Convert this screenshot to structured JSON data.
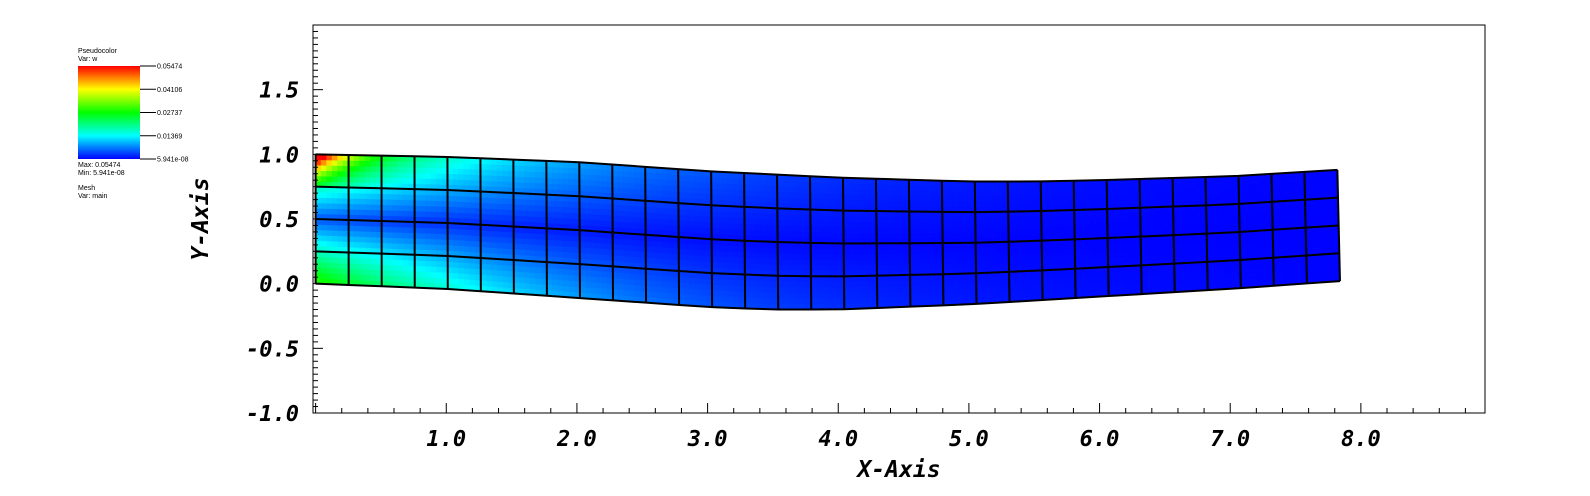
{
  "chart_data": {
    "type": "heatmap",
    "plot_kind": "pseudocolor on deformed quadrilateral mesh",
    "xlabel": "X-Axis",
    "ylabel": "Y-Axis",
    "xlim": [
      -0.02,
      8.95
    ],
    "ylim": [
      -1.0,
      2.0
    ],
    "x_ticks": [
      "1.0",
      "2.0",
      "3.0",
      "4.0",
      "5.0",
      "6.0",
      "7.0",
      "8.0"
    ],
    "y_ticks": [
      "-1.0",
      "-0.5",
      "0.0",
      "0.5",
      "1.0",
      "1.5"
    ],
    "x_tick_values": [
      1,
      2,
      3,
      4,
      5,
      6,
      7,
      8
    ],
    "y_tick_values": [
      -1,
      -0.5,
      0,
      0.5,
      1,
      1.5
    ],
    "grid": false,
    "legend": {
      "placement": "top-left",
      "title": "Pseudocolor",
      "var_line": "Var: w",
      "levels": [
        "0.05474",
        "0.04106",
        "0.02737",
        "0.01369",
        "5.941e-08"
      ],
      "max_line": "Max: 0.05474",
      "min_line": "Min: 5.941e-08",
      "mesh_title": "Mesh",
      "mesh_var": "Var: main",
      "colormap": [
        "#ff0000",
        "#ffff00",
        "#00ff00",
        "#00ffff",
        "#0000ff"
      ]
    },
    "mesh": {
      "columns": 31,
      "rows": 4,
      "bottom_edge": [
        [
          0.0,
          0.0
        ],
        [
          1.0,
          -0.04
        ],
        [
          2.0,
          -0.11
        ],
        [
          3.0,
          -0.18
        ],
        [
          3.5,
          -0.2
        ],
        [
          4.0,
          -0.2
        ],
        [
          5.0,
          -0.16
        ],
        [
          6.0,
          -0.1
        ],
        [
          7.0,
          -0.04
        ],
        [
          7.84,
          0.02
        ]
      ],
      "top_edge": [
        [
          0.0,
          1.0
        ],
        [
          1.0,
          0.98
        ],
        [
          2.0,
          0.94
        ],
        [
          3.0,
          0.87
        ],
        [
          4.0,
          0.82
        ],
        [
          5.0,
          0.79
        ],
        [
          5.5,
          0.79
        ],
        [
          6.0,
          0.8
        ],
        [
          7.0,
          0.83
        ],
        [
          7.82,
          0.88
        ]
      ],
      "w_scale_max": 0.05474,
      "w_scale_min": 5.941e-08
    }
  }
}
